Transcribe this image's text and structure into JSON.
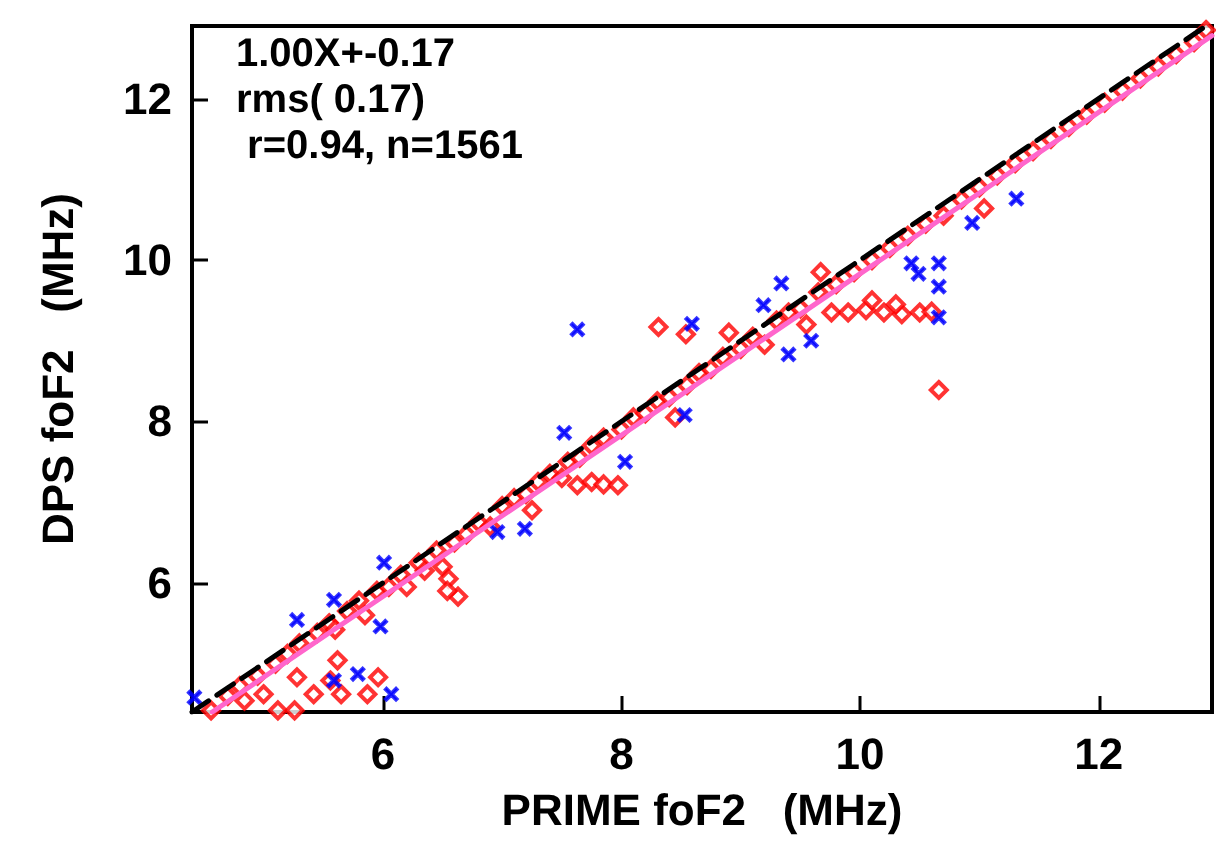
{
  "chart_data": {
    "type": "scatter",
    "xlabel": "PRIME foF2   (MHz)",
    "ylabel": "DPS foF2   (MHz)",
    "annotations": [
      "1.00X+-0.17",
      "rms( 0.17)",
      " r=0.94, n=1561"
    ],
    "xlim": [
      4.4,
      12.95
    ],
    "xticks": [
      6,
      8,
      10,
      12
    ],
    "ylim": [
      4.4,
      12.9
    ],
    "yticks": [
      6,
      8,
      10,
      12
    ],
    "grid": false,
    "series": [
      {
        "marker": "diamond",
        "color": "#ff0000",
        "x": [
          4.56,
          4.7,
          4.8,
          4.95,
          5.1,
          5.2,
          5.3,
          5.45,
          5.55,
          5.6,
          5.7,
          5.8,
          5.85,
          5.95,
          6.05,
          6.15,
          6.2,
          6.3,
          6.35,
          6.45,
          6.5,
          6.55,
          6.6,
          6.63,
          6.54,
          6.7,
          6.8,
          6.9,
          7.0,
          7.1,
          7.2,
          7.25,
          7.3,
          7.4,
          7.5,
          7.55,
          7.63,
          7.75,
          7.85,
          7.97,
          7.65,
          7.75,
          7.85,
          8.0,
          8.1,
          8.2,
          8.3,
          8.4,
          8.45,
          8.55,
          8.65,
          8.75,
          8.85,
          8.9,
          9.0,
          9.1,
          9.2,
          9.3,
          9.4,
          9.5,
          9.55,
          9.65,
          9.67,
          9.76,
          9.9,
          10.05,
          10.2,
          10.35,
          10.5,
          10.6,
          10.1,
          10.3,
          9.8,
          9.95,
          10.1,
          10.25,
          10.4,
          10.55,
          10.7,
          10.85,
          11.04,
          11.0,
          11.15,
          11.3,
          11.45,
          11.6,
          11.75,
          11.9,
          12.05,
          12.2,
          12.35,
          12.5,
          12.65,
          12.8,
          12.9,
          8.31,
          8.54,
          10.66,
          5.62,
          5.96,
          5.87,
          5.65,
          5.42,
          5.28,
          5.12,
          5.0,
          4.84,
          5.56,
          5.26
        ],
        "values": [
          4.42,
          4.6,
          4.72,
          4.85,
          5.0,
          5.12,
          5.25,
          5.38,
          5.5,
          5.42,
          5.65,
          5.78,
          5.6,
          5.9,
          5.95,
          6.1,
          5.95,
          6.25,
          6.15,
          6.4,
          6.2,
          6.05,
          6.5,
          5.83,
          5.9,
          6.6,
          6.75,
          6.7,
          6.95,
          7.05,
          7.1,
          6.9,
          7.25,
          7.35,
          7.3,
          7.5,
          7.21,
          7.25,
          7.22,
          7.21,
          7.55,
          7.7,
          7.8,
          7.9,
          8.05,
          8.1,
          8.25,
          8.3,
          8.05,
          8.45,
          8.6,
          8.65,
          8.8,
          9.1,
          8.9,
          9.05,
          8.95,
          9.25,
          9.35,
          9.4,
          9.2,
          9.6,
          9.85,
          9.35,
          9.35,
          9.38,
          9.35,
          9.33,
          9.35,
          9.36,
          9.5,
          9.45,
          9.7,
          9.85,
          10.0,
          10.15,
          10.3,
          10.45,
          10.55,
          10.75,
          10.64,
          10.9,
          11.05,
          11.2,
          11.35,
          11.5,
          11.65,
          11.8,
          11.95,
          12.1,
          12.25,
          12.4,
          12.55,
          12.7,
          12.85,
          9.17,
          9.08,
          8.39,
          5.04,
          4.83,
          4.62,
          4.62,
          4.62,
          4.83,
          4.42,
          4.62,
          4.54,
          4.79,
          4.42
        ]
      },
      {
        "marker": "cross",
        "color": "#0000ff",
        "x": [
          7.63,
          9.34,
          9.19,
          10.66,
          10.66,
          10.66,
          10.43,
          10.49,
          10.94,
          11.31,
          7.52,
          8.03,
          6.01,
          5.98,
          6.07,
          5.79,
          5.59,
          5.59,
          5.28,
          4.42,
          8.59,
          9.59,
          9.4,
          8.53,
          7.19,
          6.96
        ],
        "values": [
          9.14,
          9.71,
          9.44,
          9.96,
          9.67,
          9.29,
          9.96,
          9.83,
          10.46,
          10.76,
          7.86,
          7.5,
          6.25,
          5.46,
          4.62,
          4.87,
          4.79,
          5.79,
          5.54,
          4.58,
          9.21,
          9.0,
          8.83,
          8.08,
          6.67,
          6.63
        ]
      },
      {
        "type": "line",
        "line_style": "dashed",
        "color": "#000000",
        "x": [
          4.4,
          12.9
        ],
        "values": [
          4.4,
          12.9
        ]
      },
      {
        "type": "line",
        "line_style": "solid",
        "color": "#ff66cc",
        "x": [
          4.57,
          12.95
        ],
        "values": [
          4.4,
          12.78
        ]
      }
    ]
  }
}
